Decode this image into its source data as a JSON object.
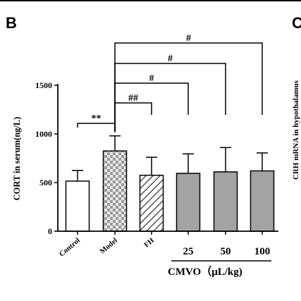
{
  "panel_label": "B",
  "next_panel_label": "C",
  "right_cut_label": "CRH mRNA in hypothalamus",
  "chart_data": {
    "type": "bar",
    "categories": [
      "Control",
      "Model",
      "FH",
      "25",
      "50",
      "100"
    ],
    "values": [
      515,
      825,
      575,
      595,
      610,
      620
    ],
    "errors": [
      110,
      155,
      185,
      200,
      250,
      185
    ],
    "ylabel": "CORT in serum(ng/L)",
    "xlabel": "CMVO（μL/kg)",
    "ylim": [
      0,
      1500
    ],
    "yticks": [
      0,
      500,
      1000,
      1500
    ],
    "bar_styles": [
      "white",
      "checker",
      "hatch",
      "gray",
      "gray",
      "gray"
    ],
    "colors": {
      "gray": "#a3a3a3",
      "stroke": "#000000"
    },
    "group_label": {
      "text": "CMVO（μL/kg)",
      "spans": [
        "25",
        "50",
        "100"
      ]
    },
    "significance": [
      {
        "from": "Control",
        "to": "Model",
        "label": "**"
      },
      {
        "from": "Model",
        "to": "FH",
        "label": "##"
      },
      {
        "from": "Model",
        "to": "25",
        "label": "#"
      },
      {
        "from": "Model",
        "to": "50",
        "label": "#"
      },
      {
        "from": "Model",
        "to": "100",
        "label": "#"
      }
    ]
  }
}
